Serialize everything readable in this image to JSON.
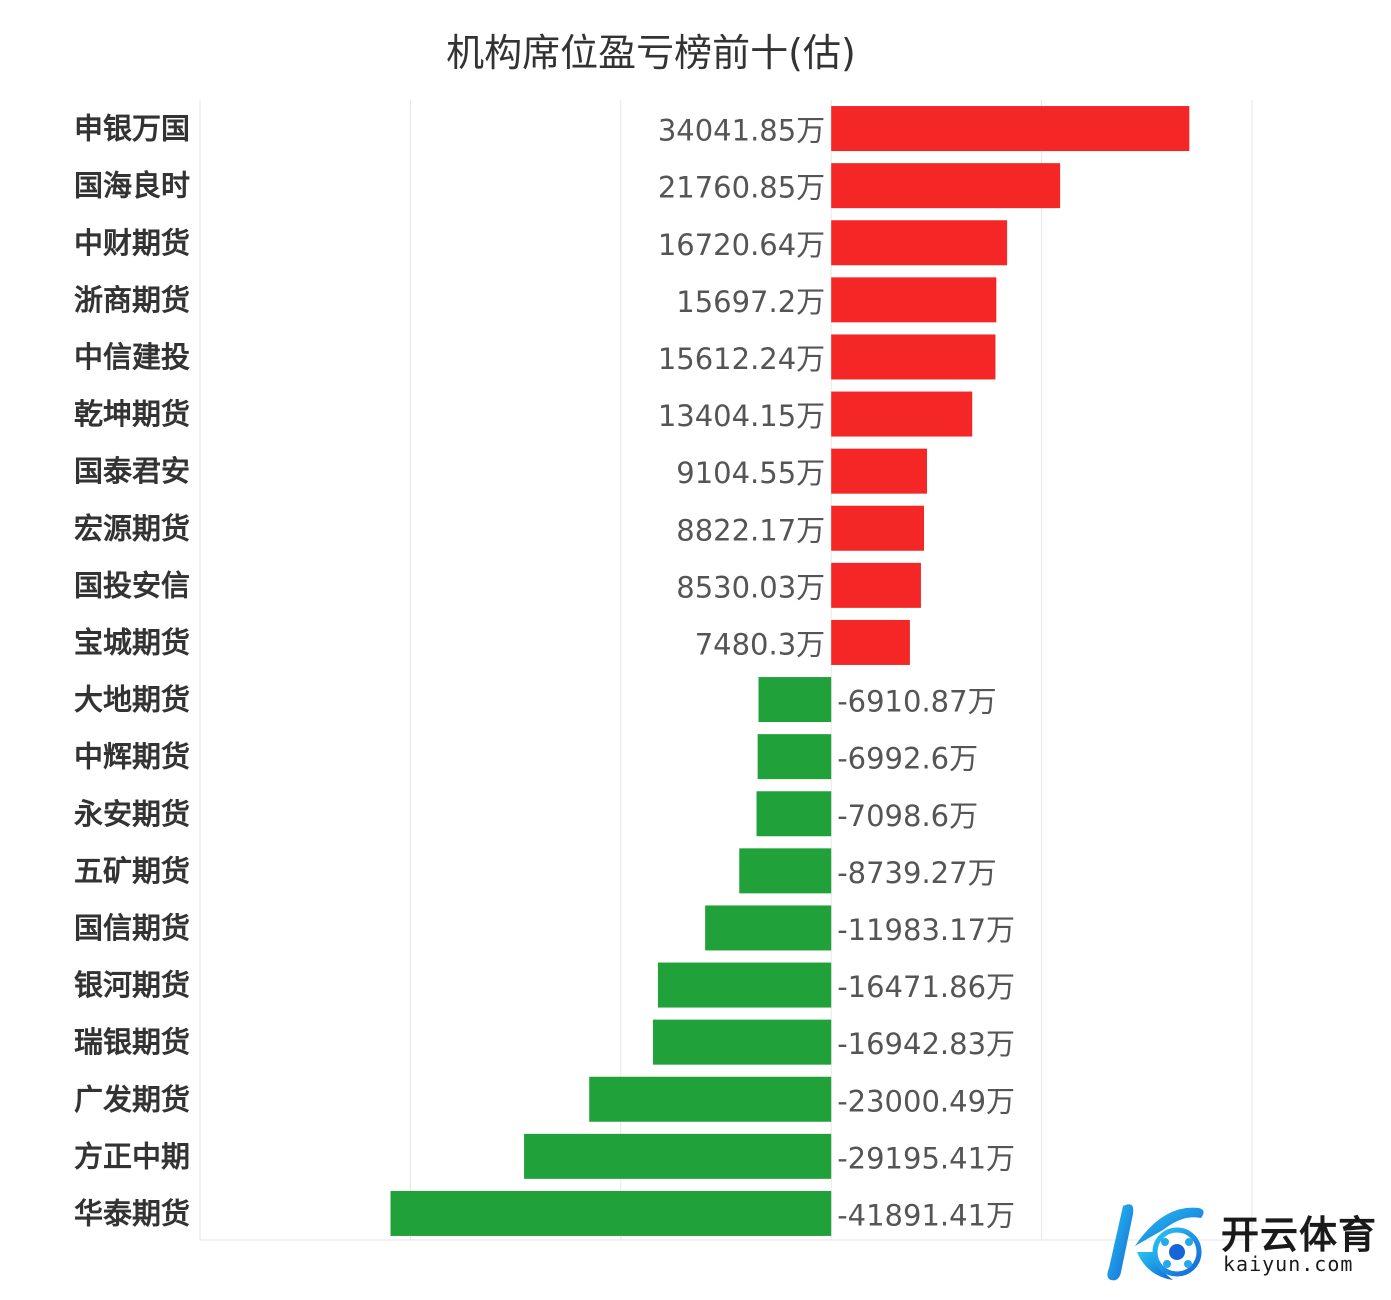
{
  "chart_data": {
    "type": "bar",
    "orientation": "horizontal",
    "title": "机构席位盈亏榜前十(估)",
    "categories": [
      "申银万国",
      "国海良时",
      "中财期货",
      "浙商期货",
      "中信建投",
      "乾坤期货",
      "国泰君安",
      "宏源期货",
      "国投安信",
      "宝城期货",
      "大地期货",
      "中辉期货",
      "永安期货",
      "五矿期货",
      "国信期货",
      "银河期货",
      "瑞银期货",
      "广发期货",
      "方正中期",
      "华泰期货"
    ],
    "values": [
      34041.85,
      21760.85,
      16720.64,
      15697.2,
      15612.24,
      13404.15,
      9104.55,
      8822.17,
      8530.03,
      7480.3,
      -6910.87,
      -6992.6,
      -7098.6,
      -8739.27,
      -11983.17,
      -16471.86,
      -16942.83,
      -23000.49,
      -29195.41,
      -41891.41
    ],
    "value_labels": [
      "34041.85万",
      "21760.85万",
      "16720.64万",
      "15697.2万",
      "15612.24万",
      "13404.15万",
      "9104.55万",
      "8822.17万",
      "8530.03万",
      "7480.3万",
      "-6910.87万",
      "-6992.6万",
      "-7098.6万",
      "-8739.27万",
      "-11983.17万",
      "-16471.86万",
      "-16942.83万",
      "-23000.49万",
      "-29195.41万",
      "-41891.41万"
    ],
    "unit": "万",
    "xlim": [
      -60000,
      40000
    ],
    "grid": true,
    "colors": {
      "positive": "#f42626",
      "negative": "#21a13a",
      "grid": "#e6e6e6"
    }
  },
  "watermark": {
    "name": "开云体育",
    "url": "kaiyun.com"
  }
}
